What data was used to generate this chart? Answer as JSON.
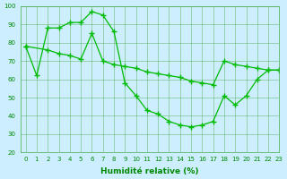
{
  "line1_x": [
    0,
    1,
    2,
    3,
    4,
    5,
    6,
    7,
    8,
    9,
    10,
    11,
    12,
    13,
    14,
    15,
    16,
    17,
    18,
    19,
    20,
    21,
    22,
    23
  ],
  "line1_y": [
    78,
    62,
    88,
    88,
    91,
    91,
    97,
    95,
    86,
    58,
    51,
    43,
    41,
    37,
    35,
    34,
    35,
    37,
    51,
    46,
    51,
    60,
    65,
    65
  ],
  "line2_x": [
    0,
    2,
    3,
    4,
    5,
    6,
    7,
    8,
    9,
    10,
    11,
    12,
    13,
    14,
    15,
    16,
    17,
    18,
    19,
    20,
    21,
    22,
    23
  ],
  "line2_y": [
    78,
    76,
    74,
    73,
    71,
    85,
    70,
    68,
    67,
    66,
    64,
    63,
    62,
    61,
    59,
    58,
    57,
    70,
    68,
    67,
    66,
    65,
    65
  ],
  "line_color": "#00bb00",
  "bg_color": "#cceeff",
  "grid_color": "#44aa44",
  "xlabel": "Humidité relative (%)",
  "xlabel_color": "#008800",
  "tick_color": "#008800",
  "ylim": [
    20,
    100
  ],
  "xlim": [
    -0.5,
    23
  ],
  "yticks": [
    20,
    30,
    40,
    50,
    60,
    70,
    80,
    90,
    100
  ],
  "xticks": [
    0,
    1,
    2,
    3,
    4,
    5,
    6,
    7,
    8,
    9,
    10,
    11,
    12,
    13,
    14,
    15,
    16,
    17,
    18,
    19,
    20,
    21,
    22,
    23
  ]
}
